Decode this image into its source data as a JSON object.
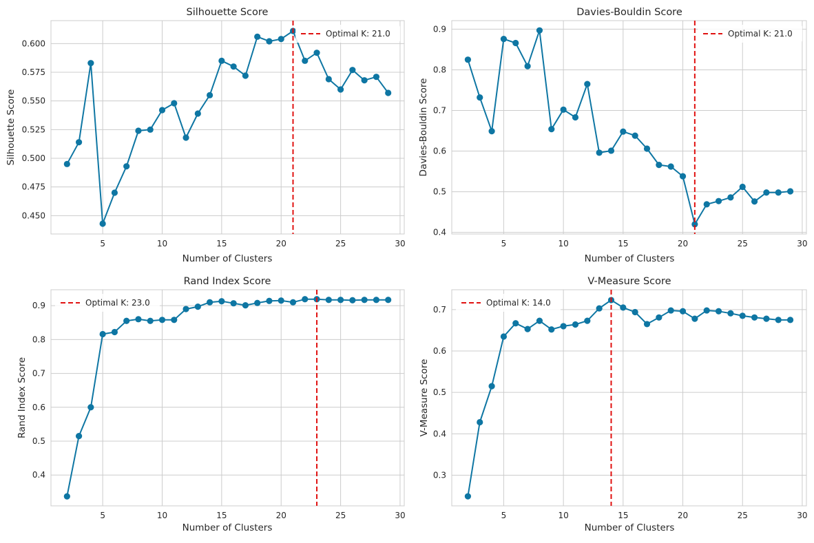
{
  "colors": {
    "series": "#0e76a3",
    "optimal_line": "#e0100f",
    "grid": "#cccccc"
  },
  "chart_data": [
    {
      "type": "line",
      "title": "Silhouette Score",
      "xlabel": "Number of Clusters",
      "ylabel": "Silhouette Score",
      "xlim": [
        0.65,
        30.35
      ],
      "ylim": [
        0.434,
        0.62
      ],
      "xticks": [
        5,
        10,
        15,
        20,
        25,
        30
      ],
      "yticks": [
        0.45,
        0.475,
        0.5,
        0.525,
        0.55,
        0.575,
        0.6
      ],
      "ytick_labels": [
        "0.450",
        "0.475",
        "0.500",
        "0.525",
        "0.550",
        "0.575",
        "0.600"
      ],
      "grid": true,
      "x": [
        2,
        3,
        4,
        5,
        6,
        7,
        8,
        9,
        10,
        11,
        12,
        13,
        14,
        15,
        16,
        17,
        18,
        19,
        20,
        21,
        22,
        23,
        24,
        25,
        26,
        27,
        28,
        29
      ],
      "values": [
        0.495,
        0.514,
        0.583,
        0.443,
        0.47,
        0.493,
        0.524,
        0.525,
        0.542,
        0.548,
        0.518,
        0.539,
        0.555,
        0.585,
        0.58,
        0.572,
        0.606,
        0.602,
        0.604,
        0.611,
        0.585,
        0.592,
        0.569,
        0.56,
        0.577,
        0.568,
        0.571,
        0.557
      ],
      "optimal_k": 21.0,
      "legend": {
        "label": "Optimal K: 21.0",
        "location": "upper right"
      }
    },
    {
      "type": "line",
      "title": "Davies-Bouldin Score",
      "xlabel": "Number of Clusters",
      "ylabel": "Davies-Bouldin Score",
      "xlim": [
        0.65,
        30.35
      ],
      "ylim": [
        0.396,
        0.921
      ],
      "xticks": [
        5,
        10,
        15,
        20,
        25,
        30
      ],
      "yticks": [
        0.4,
        0.5,
        0.6,
        0.7,
        0.8,
        0.9
      ],
      "ytick_labels": [
        "0.4",
        "0.5",
        "0.6",
        "0.7",
        "0.8",
        "0.9"
      ],
      "grid": true,
      "x": [
        2,
        3,
        4,
        5,
        6,
        7,
        8,
        9,
        10,
        11,
        12,
        13,
        14,
        15,
        16,
        17,
        18,
        19,
        20,
        21,
        22,
        23,
        24,
        25,
        26,
        27,
        28,
        29
      ],
      "values": [
        0.825,
        0.732,
        0.649,
        0.876,
        0.866,
        0.809,
        0.897,
        0.654,
        0.702,
        0.683,
        0.765,
        0.596,
        0.601,
        0.648,
        0.638,
        0.606,
        0.566,
        0.562,
        0.538,
        0.42,
        0.469,
        0.477,
        0.486,
        0.512,
        0.476,
        0.498,
        0.498,
        0.501
      ],
      "optimal_k": 21.0,
      "legend": {
        "label": "Optimal K: 21.0",
        "location": "upper right"
      }
    },
    {
      "type": "line",
      "title": "Rand Index Score",
      "xlabel": "Number of Clusters",
      "ylabel": "Rand Index Score",
      "xlim": [
        0.65,
        30.35
      ],
      "ylim": [
        0.309,
        0.947
      ],
      "xticks": [
        5,
        10,
        15,
        20,
        25,
        30
      ],
      "yticks": [
        0.4,
        0.5,
        0.6,
        0.7,
        0.8,
        0.9
      ],
      "ytick_labels": [
        "0.4",
        "0.5",
        "0.6",
        "0.7",
        "0.8",
        "0.9"
      ],
      "grid": true,
      "x": [
        2,
        3,
        4,
        5,
        6,
        7,
        8,
        9,
        10,
        11,
        12,
        13,
        14,
        15,
        16,
        17,
        18,
        19,
        20,
        21,
        22,
        23,
        24,
        25,
        26,
        27,
        28,
        29
      ],
      "values": [
        0.337,
        0.515,
        0.6,
        0.816,
        0.822,
        0.855,
        0.86,
        0.855,
        0.858,
        0.858,
        0.89,
        0.897,
        0.91,
        0.913,
        0.907,
        0.901,
        0.908,
        0.914,
        0.915,
        0.91,
        0.919,
        0.919,
        0.917,
        0.917,
        0.916,
        0.917,
        0.917,
        0.917
      ],
      "optimal_k": 23.0,
      "legend": {
        "label": "Optimal K: 23.0",
        "location": "upper left"
      }
    },
    {
      "type": "line",
      "title": "V-Measure Score",
      "xlabel": "Number of Clusters",
      "ylabel": "V-Measure Score",
      "xlim": [
        0.65,
        30.35
      ],
      "ylim": [
        0.226,
        0.748
      ],
      "xticks": [
        5,
        10,
        15,
        20,
        25,
        30
      ],
      "yticks": [
        0.3,
        0.4,
        0.5,
        0.6,
        0.7
      ],
      "ytick_labels": [
        "0.3",
        "0.4",
        "0.5",
        "0.6",
        "0.7"
      ],
      "grid": true,
      "x": [
        2,
        3,
        4,
        5,
        6,
        7,
        8,
        9,
        10,
        11,
        12,
        13,
        14,
        15,
        16,
        17,
        18,
        19,
        20,
        21,
        22,
        23,
        24,
        25,
        26,
        27,
        28,
        29
      ],
      "values": [
        0.249,
        0.428,
        0.515,
        0.635,
        0.667,
        0.653,
        0.673,
        0.652,
        0.66,
        0.664,
        0.673,
        0.703,
        0.723,
        0.705,
        0.694,
        0.665,
        0.681,
        0.698,
        0.696,
        0.678,
        0.698,
        0.696,
        0.691,
        0.685,
        0.681,
        0.678,
        0.675,
        0.675
      ],
      "optimal_k": 14.0,
      "legend": {
        "label": "Optimal K: 14.0",
        "location": "upper left"
      }
    }
  ]
}
